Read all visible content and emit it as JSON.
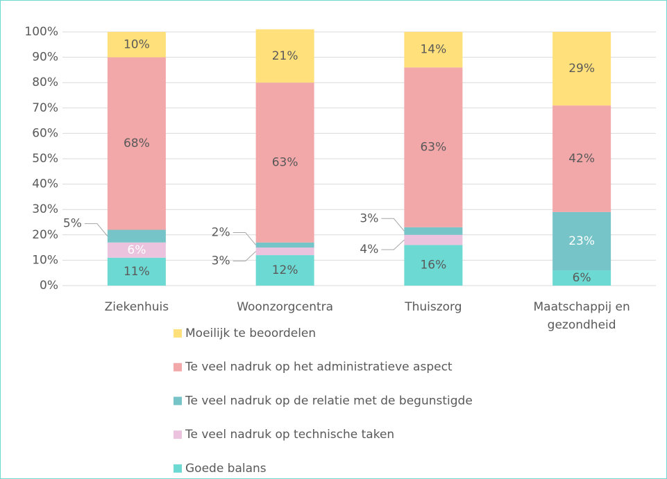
{
  "chart_data": {
    "type": "stacked_bar",
    "categories": [
      "Ziekenhuis",
      "Woonzorgcentra",
      "Thuiszorg",
      "Maatschappij en gezondheid"
    ],
    "series": [
      {
        "name": "Goede balans",
        "color": "#6dd9d3",
        "values": [
          11,
          12,
          16,
          6
        ],
        "value_labels": [
          "11%",
          "12%",
          "16%",
          "6%"
        ]
      },
      {
        "name": "Te veel nadruk op technische taken",
        "color": "#ebc3de",
        "values": [
          6,
          3,
          4,
          0
        ],
        "value_labels": [
          "6%",
          "3%",
          "4%",
          null
        ]
      },
      {
        "name": "Te veel nadruk op de relatie met de begunstigde",
        "color": "#77c4c8",
        "values": [
          5,
          2,
          3,
          23
        ],
        "value_labels": [
          "5%",
          "2%",
          "3%",
          "23%"
        ]
      },
      {
        "name": "Te veel nadruk op het administratieve aspect",
        "color": "#f2a7a9",
        "values": [
          68,
          63,
          63,
          42
        ],
        "value_labels": [
          "68%",
          "63%",
          "63%",
          "42%"
        ]
      },
      {
        "name": "Moeilijk te beoordelen",
        "color": "#ffe07a",
        "values": [
          10,
          21,
          14,
          29
        ],
        "value_labels": [
          "10%",
          "21%",
          "14%",
          "29%"
        ]
      }
    ],
    "ylim": [
      0,
      100
    ],
    "yticks": [
      {
        "value": 0,
        "label": "0%"
      },
      {
        "value": 10,
        "label": "10%"
      },
      {
        "value": 20,
        "label": "20%"
      },
      {
        "value": 30,
        "label": "30%"
      },
      {
        "value": 40,
        "label": "40%"
      },
      {
        "value": 50,
        "label": "50%"
      },
      {
        "value": 60,
        "label": "60%"
      },
      {
        "value": 70,
        "label": "70%"
      },
      {
        "value": 80,
        "label": "80%"
      },
      {
        "value": 90,
        "label": "90%"
      },
      {
        "value": 100,
        "label": "100%"
      }
    ],
    "grid": true
  }
}
